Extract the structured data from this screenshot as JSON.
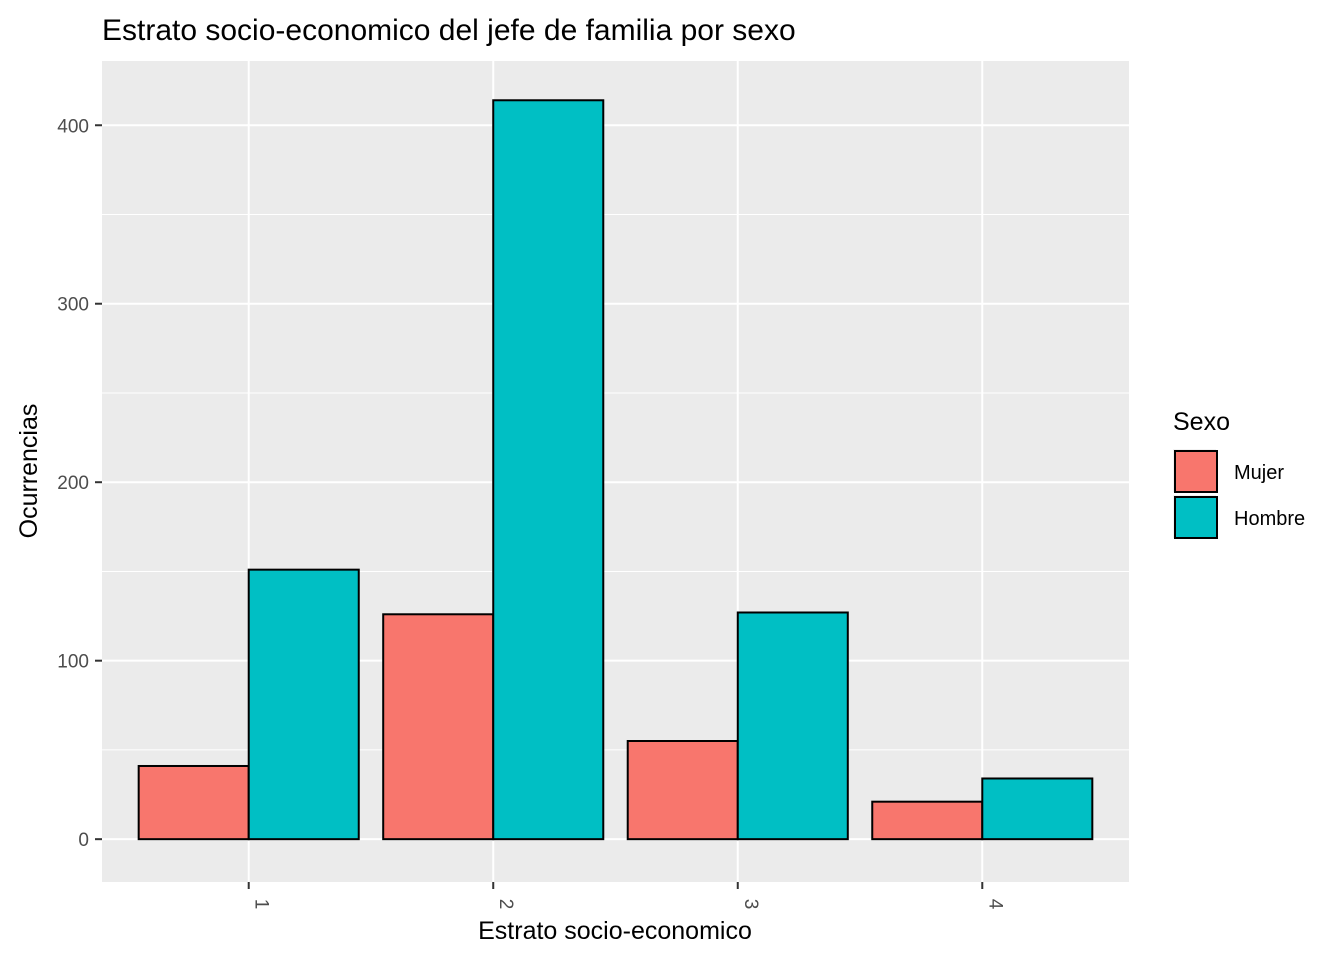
{
  "chart_data": {
    "type": "bar",
    "title": "Estrato socio-economico del jefe de familia por sexo",
    "xlabel": "Estrato socio-economico",
    "ylabel": "Ocurrencias",
    "categories": [
      "1",
      "2",
      "3",
      "4"
    ],
    "series": [
      {
        "name": "Mujer",
        "values": [
          41,
          126,
          55,
          21
        ],
        "color": "#F8766D"
      },
      {
        "name": "Hombre",
        "values": [
          151,
          414,
          127,
          34
        ],
        "color": "#00BFC4"
      }
    ],
    "ylim": [
      -24,
      436
    ],
    "yticks": [
      0,
      100,
      200,
      300,
      400
    ],
    "grid": true,
    "legend": {
      "title": "Sexo",
      "position": "right"
    },
    "panel_color": "#EBEBEB",
    "grid_color": "#FFFFFF"
  }
}
